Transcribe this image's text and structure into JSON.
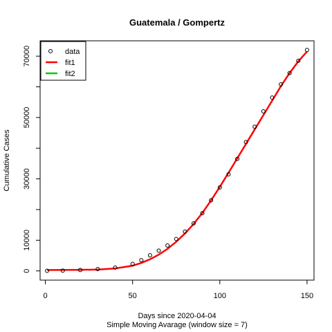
{
  "chart_data": {
    "type": "scatter",
    "title": "Guatemala / Gompertz",
    "xlabel": "Days since 2020-04-04",
    "subtitle": "Simple Moving Avarage (window size = 7)",
    "ylabel": "Cumulative Cases",
    "xlim": [
      -3,
      154
    ],
    "ylim": [
      -3000,
      75000
    ],
    "x_ticks": [
      0,
      50,
      100,
      150
    ],
    "y_ticks": [
      0,
      10000,
      20000,
      30000,
      40000,
      50000,
      60000,
      70000
    ],
    "y_tick_labels": [
      "0",
      "10000",
      "30000",
      "50000",
      "70000"
    ],
    "legend": {
      "position": "top-left",
      "entries": [
        {
          "label": "data",
          "kind": "point",
          "color": "#000000"
        },
        {
          "label": "fit1",
          "kind": "line",
          "color": "#ff0000"
        },
        {
          "label": "fit2",
          "kind": "line",
          "color": "#00cd00"
        }
      ]
    },
    "series": [
      {
        "name": "data",
        "kind": "points",
        "color": "#000000",
        "x": [
          1,
          10,
          20,
          30,
          40,
          50,
          55,
          60,
          65,
          70,
          75,
          80,
          85,
          90,
          95,
          100,
          105,
          110,
          115,
          120,
          125,
          130,
          135,
          140,
          145,
          150
        ],
        "y": [
          40,
          100,
          300,
          600,
          1100,
          2300,
          3500,
          5100,
          6600,
          8300,
          10400,
          12800,
          15500,
          18800,
          23000,
          27200,
          31500,
          36500,
          42000,
          47000,
          52000,
          56500,
          60800,
          64500,
          68500,
          72000
        ]
      },
      {
        "name": "fit1",
        "kind": "line",
        "color": "#ff0000",
        "x": [
          1,
          10,
          20,
          30,
          40,
          50,
          55,
          60,
          65,
          70,
          75,
          80,
          85,
          90,
          95,
          100,
          105,
          110,
          115,
          120,
          125,
          130,
          135,
          140,
          145,
          150
        ],
        "y": [
          300,
          320,
          350,
          450,
          800,
          1700,
          2600,
          3800,
          5300,
          7200,
          9500,
          12200,
          15300,
          18900,
          23000,
          27400,
          32000,
          36700,
          41400,
          46100,
          50800,
          55500,
          60200,
          64500,
          68300,
          71500
        ]
      }
    ]
  }
}
